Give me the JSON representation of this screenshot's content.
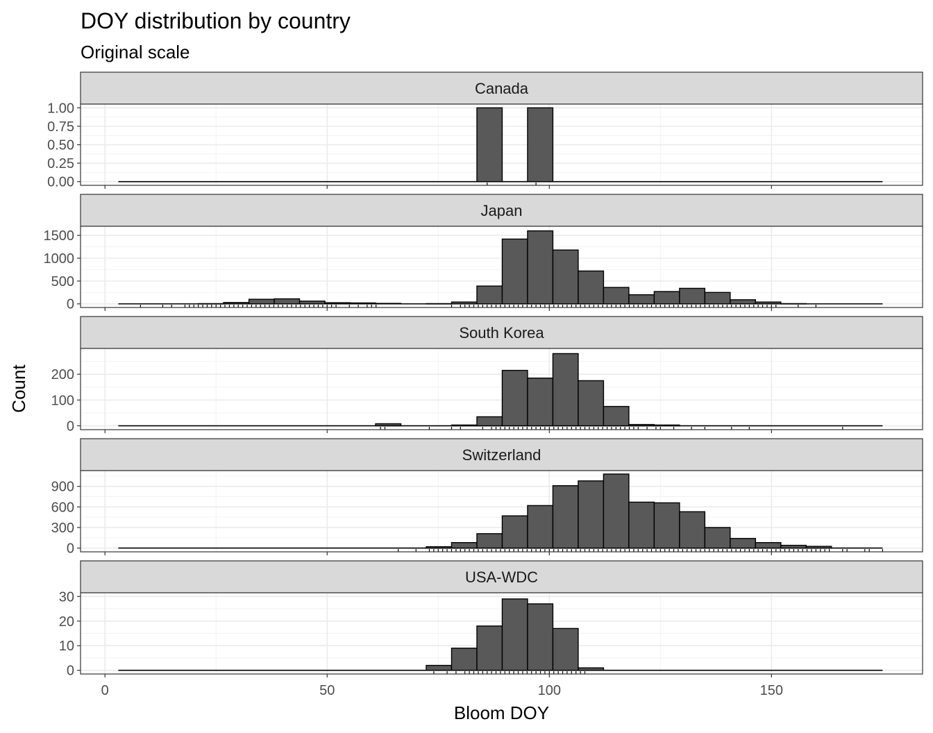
{
  "chart_data": {
    "type": "histogram-facets",
    "title": "DOY distribution by country",
    "subtitle": "Original scale",
    "xlabel": "Bloom DOY",
    "ylabel": "Count",
    "x_ticks": [
      0,
      50,
      100,
      150
    ],
    "xlim": [
      -5.5,
      184
    ],
    "bin_width": 5.7,
    "bin_start": 83.7,
    "colors": {
      "bar_fill": "#595959",
      "bar_stroke": "#000000",
      "strip_fill": "#d9d9d9",
      "grid": "#ebebeb"
    },
    "facets": [
      {
        "name": "Canada",
        "y_ticks": [
          0,
          0.25,
          0.5,
          0.75,
          1
        ],
        "y_tick_labels": [
          "0.00",
          "0.25",
          "0.50",
          "0.75",
          "1.00"
        ],
        "ylim": [
          -0.05,
          1.05
        ],
        "line_range": [
          3,
          175
        ],
        "bins": [
          [
            0,
            1
          ],
          [
            2,
            1
          ]
        ],
        "rug": [
          86,
          97
        ]
      },
      {
        "name": "Japan",
        "y_ticks": [
          0,
          500,
          1000,
          1500
        ],
        "y_tick_labels": [
          "0",
          "500",
          "1000",
          "1500"
        ],
        "ylim": [
          -80,
          1700
        ],
        "line_range": [
          3,
          175
        ],
        "bins": [
          [
            -11,
            5
          ],
          [
            -10,
            30
          ],
          [
            -9,
            100
          ],
          [
            -8,
            110
          ],
          [
            -7,
            60
          ],
          [
            -6,
            25
          ],
          [
            -5,
            20
          ],
          [
            -4,
            10
          ],
          [
            -2,
            5
          ],
          [
            -1,
            40
          ],
          [
            0,
            390
          ],
          [
            1,
            1420
          ],
          [
            2,
            1600
          ],
          [
            3,
            1180
          ],
          [
            4,
            720
          ],
          [
            5,
            360
          ],
          [
            6,
            200
          ],
          [
            7,
            270
          ],
          [
            8,
            340
          ],
          [
            9,
            250
          ],
          [
            10,
            90
          ],
          [
            11,
            40
          ],
          [
            12,
            5
          ]
        ],
        "rug": [
          8,
          13,
          15,
          18,
          19,
          20,
          21,
          22,
          23,
          24,
          25,
          26,
          27,
          28,
          29,
          30,
          31,
          32,
          33,
          34,
          35,
          36,
          37,
          38,
          39,
          40,
          41,
          42,
          43,
          44,
          45,
          46,
          47,
          48,
          49,
          50,
          51,
          52,
          55,
          57,
          59,
          60,
          61,
          78,
          80,
          81,
          82,
          83,
          84,
          85,
          86,
          87,
          88,
          89,
          90,
          91,
          92,
          93,
          94,
          95,
          96,
          97,
          98,
          99,
          100,
          101,
          102,
          103,
          104,
          105,
          106,
          107,
          108,
          109,
          110,
          111,
          112,
          113,
          114,
          115,
          116,
          117,
          118,
          119,
          120,
          121,
          122,
          123,
          124,
          125,
          126,
          127,
          128,
          129,
          130,
          131,
          132,
          133,
          134,
          135,
          136,
          137,
          138,
          139,
          140,
          141,
          142,
          143,
          144,
          145,
          146,
          147,
          148,
          149,
          150,
          151,
          156,
          160
        ]
      },
      {
        "name": "South Korea",
        "y_ticks": [
          0,
          100,
          200
        ],
        "y_tick_labels": [
          "0",
          "100",
          "200"
        ],
        "ylim": [
          -15,
          300
        ],
        "line_range": [
          3,
          175
        ],
        "bins": [
          [
            -4,
            8
          ],
          [
            -1,
            3
          ],
          [
            0,
            35
          ],
          [
            1,
            215
          ],
          [
            2,
            185
          ],
          [
            3,
            280
          ],
          [
            4,
            175
          ],
          [
            5,
            75
          ],
          [
            6,
            5
          ],
          [
            7,
            3
          ]
        ],
        "rug": [
          62,
          63,
          73,
          78,
          80,
          85,
          87,
          88,
          89,
          90,
          91,
          92,
          93,
          94,
          95,
          96,
          97,
          98,
          99,
          100,
          101,
          102,
          103,
          104,
          105,
          106,
          107,
          108,
          109,
          110,
          111,
          112,
          113,
          114,
          115,
          116,
          117,
          118,
          119,
          120,
          122,
          124,
          125,
          128,
          132,
          135,
          141,
          145,
          166
        ]
      },
      {
        "name": "Switzerland",
        "y_ticks": [
          0,
          300,
          600,
          900
        ],
        "y_tick_labels": [
          "0",
          "300",
          "600",
          "900"
        ],
        "ylim": [
          -55,
          1130
        ],
        "line_range": [
          3,
          175
        ],
        "bins": [
          [
            -2,
            20
          ],
          [
            -1,
            80
          ],
          [
            0,
            210
          ],
          [
            1,
            470
          ],
          [
            2,
            620
          ],
          [
            3,
            910
          ],
          [
            4,
            980
          ],
          [
            5,
            1080
          ],
          [
            6,
            670
          ],
          [
            7,
            660
          ],
          [
            8,
            530
          ],
          [
            9,
            300
          ],
          [
            10,
            140
          ],
          [
            11,
            80
          ],
          [
            12,
            40
          ],
          [
            13,
            25
          ]
        ],
        "rug": [
          66,
          70,
          73,
          74,
          75,
          76,
          77,
          78,
          79,
          80,
          81,
          82,
          83,
          84,
          85,
          86,
          87,
          88,
          89,
          90,
          91,
          92,
          93,
          94,
          95,
          96,
          97,
          98,
          99,
          100,
          101,
          102,
          103,
          104,
          105,
          106,
          107,
          108,
          109,
          110,
          111,
          112,
          113,
          114,
          115,
          116,
          117,
          118,
          119,
          120,
          121,
          122,
          123,
          124,
          125,
          126,
          127,
          128,
          129,
          130,
          131,
          132,
          133,
          134,
          135,
          136,
          137,
          138,
          139,
          140,
          141,
          142,
          143,
          144,
          145,
          146,
          147,
          148,
          149,
          150,
          151,
          152,
          153,
          154,
          155,
          156,
          157,
          158,
          159,
          160,
          161,
          162,
          163,
          166,
          167,
          171,
          172,
          175
        ]
      },
      {
        "name": "USA-WDC",
        "y_ticks": [
          0,
          10,
          20,
          30
        ],
        "y_tick_labels": [
          "0",
          "10",
          "20",
          "30"
        ],
        "ylim": [
          -1.5,
          31.5
        ],
        "line_range": [
          3,
          175
        ],
        "bins": [
          [
            -2,
            2
          ],
          [
            -1,
            9
          ],
          [
            0,
            18
          ],
          [
            1,
            29
          ],
          [
            2,
            27
          ],
          [
            3,
            17
          ],
          [
            4,
            1
          ]
        ],
        "rug": [
          74,
          77,
          79,
          81,
          82,
          83,
          84,
          85,
          86,
          87,
          88,
          89,
          90,
          91,
          92,
          93,
          94,
          95,
          96,
          97,
          98,
          99,
          100,
          101,
          102,
          103,
          104,
          105,
          106,
          107,
          108
        ]
      }
    ]
  }
}
